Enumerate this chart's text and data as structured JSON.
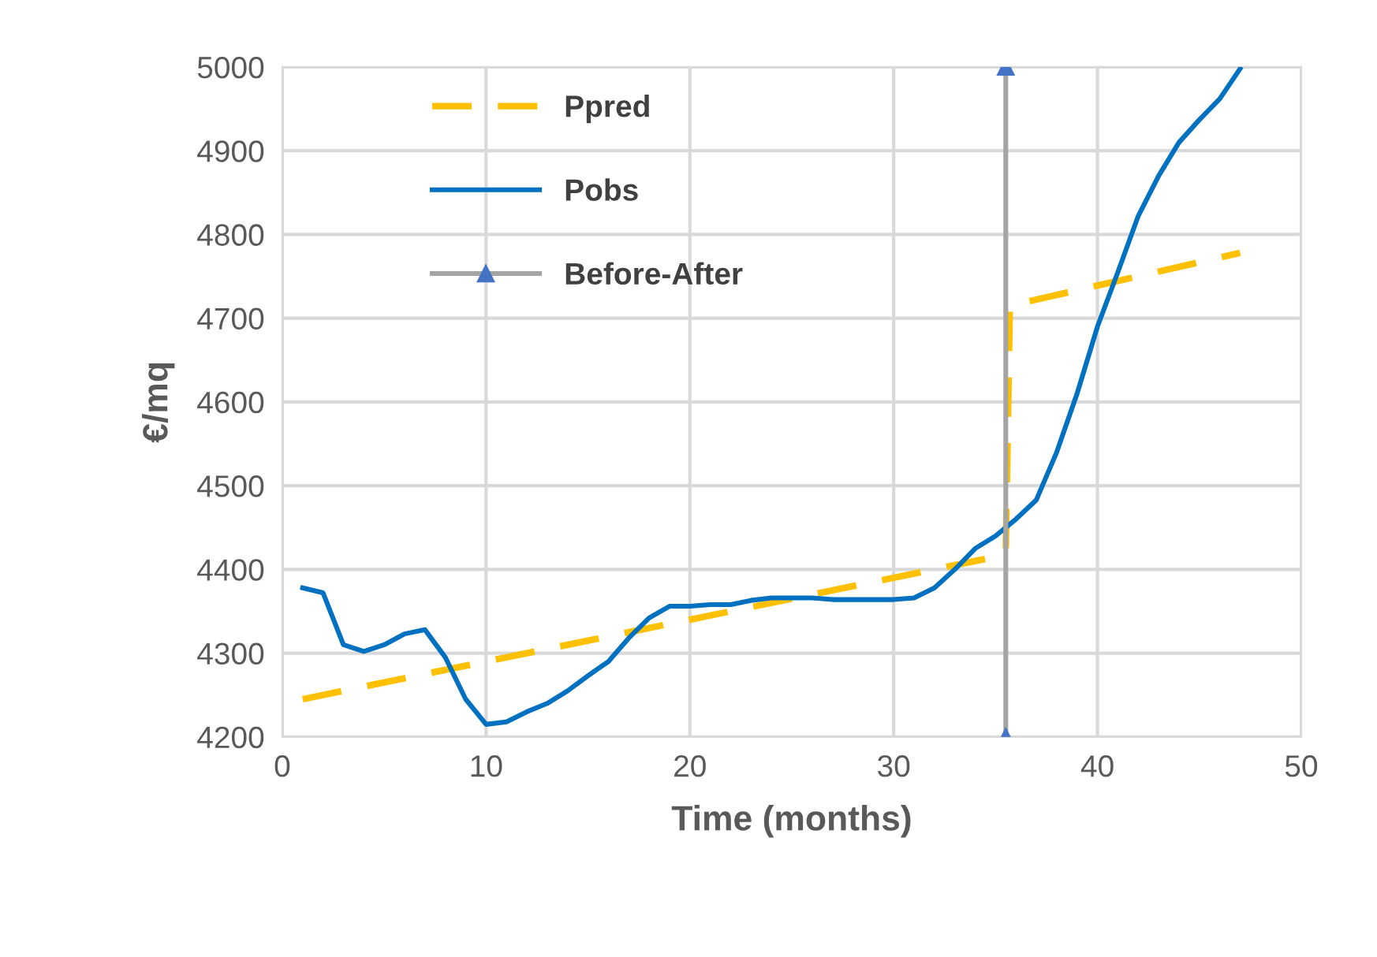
{
  "chart_data": {
    "type": "line",
    "xlabel": "Time (months)",
    "ylabel": "€/mq",
    "xlim": [
      0,
      50
    ],
    "xticks": [
      0,
      10,
      20,
      30,
      40,
      50
    ],
    "ylim": [
      4200,
      5000
    ],
    "yticks": [
      4200,
      4300,
      4400,
      4500,
      4600,
      4700,
      4800,
      4900,
      5000
    ],
    "grid": true,
    "legend": "top left",
    "series": [
      {
        "name": "Ppred",
        "color": "#ffc000",
        "line_style": "dashed",
        "marker": "none",
        "x": [
          1,
          35,
          35.5,
          35.7,
          47
        ],
        "values": [
          4245,
          4415,
          4420,
          4715,
          4778
        ]
      },
      {
        "name": "Pobs",
        "color": "#0070c0",
        "line_style": "solid",
        "marker": "none",
        "x": [
          1,
          2,
          3,
          4,
          5,
          6,
          7,
          8,
          9,
          10,
          11,
          12,
          13,
          14,
          15,
          16,
          17,
          18,
          19,
          20,
          21,
          22,
          23,
          24,
          25,
          26,
          27,
          28,
          29,
          30,
          31,
          32,
          33,
          34,
          35,
          36,
          37,
          38,
          39,
          40,
          41,
          42,
          43,
          44,
          45,
          46,
          47
        ],
        "values": [
          4378,
          4372,
          4310,
          4302,
          4310,
          4323,
          4328,
          4295,
          4245,
          4215,
          4218,
          4230,
          4240,
          4255,
          4273,
          4290,
          4318,
          4342,
          4356,
          4356,
          4358,
          4358,
          4363,
          4366,
          4366,
          4366,
          4364,
          4364,
          4364,
          4364,
          4366,
          4378,
          4400,
          4425,
          4440,
          4460,
          4483,
          4540,
          4610,
          4690,
          4755,
          4822,
          4870,
          4910,
          4937,
          4962,
          4998
        ]
      },
      {
        "name": "Before-After",
        "color": "#a5a5a5",
        "line_style": "solid",
        "marker": "triangle",
        "x": [
          35.5,
          35.5
        ],
        "values": [
          4200,
          5000
        ]
      }
    ]
  }
}
